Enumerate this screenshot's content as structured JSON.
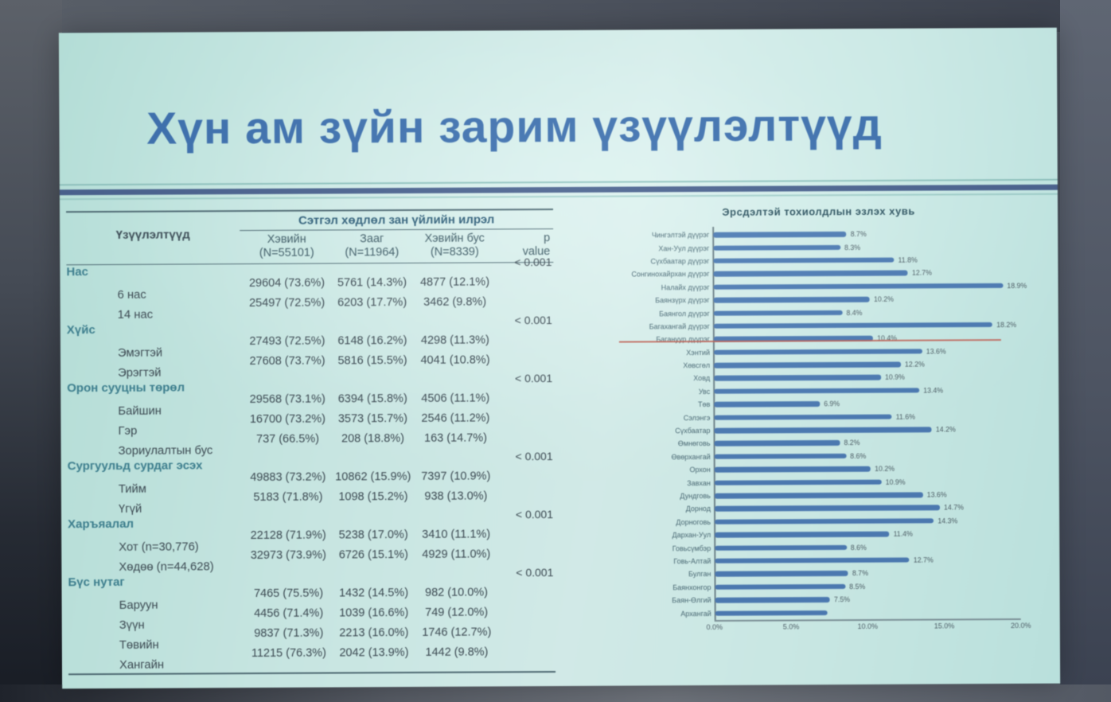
{
  "slide": {
    "title": "Хүн ам зүйн зарим үзүүлэлтүүд"
  },
  "colors": {
    "slide_bg": "#cdebe7",
    "title": "#3b6fae",
    "divider": "#48618e",
    "divider_light": "#8fc3bf",
    "rule": "#4e6a74",
    "text": "#3e4c55",
    "group_text": "#3f8292",
    "bar": "#4d7cb5",
    "highlight": "#c06156",
    "axis_text": "#4f6068"
  },
  "chart_data": [
    {
      "type": "bar",
      "orientation": "horizontal",
      "title": "Эрсдэлтэй тохиолдлын эзлэх хувь",
      "xlabel": "",
      "ylabel": "",
      "xlim": [
        0,
        20
      ],
      "x_ticks": [
        "0.0%",
        "5.0%",
        "10.0%",
        "15.0%",
        "20.0%"
      ],
      "grid": false,
      "legend": "none",
      "highlight_category": "Багануур дүүрэг",
      "items": [
        {
          "label": "Чингэлтэй дүүрэг",
          "value": 8.7,
          "display": "8.7%"
        },
        {
          "label": "Хан-Уул дүүрэг",
          "value": 8.3,
          "display": "8.3%"
        },
        {
          "label": "Сүхбаатар дүүрэг",
          "value": 11.8,
          "display": "11.8%"
        },
        {
          "label": "Сонгинохайрхан дүүрэг",
          "value": 12.7,
          "display": "12.7%"
        },
        {
          "label": "Налайх дүүрэг",
          "value": 18.9,
          "display": "18.9%"
        },
        {
          "label": "Баянзүрх дүүрэг",
          "value": 10.2,
          "display": "10.2%"
        },
        {
          "label": "Баянгол дүүрэг",
          "value": 8.4,
          "display": "8.4%"
        },
        {
          "label": "Багахангай дүүрэг",
          "value": 18.2,
          "display": "18.2%"
        },
        {
          "label": "Багануур дүүрэг",
          "value": 10.4,
          "display": "10.4%",
          "highlight": true
        },
        {
          "label": "Хэнтий",
          "value": 13.6,
          "display": "13.6%"
        },
        {
          "label": "Хөвсгөл",
          "value": 12.2,
          "display": "12.2%"
        },
        {
          "label": "Ховд",
          "value": 10.9,
          "display": "10.9%"
        },
        {
          "label": "Увс",
          "value": 13.4,
          "display": "13.4%"
        },
        {
          "label": "Төв",
          "value": 6.9,
          "display": "6.9%"
        },
        {
          "label": "Сэлэнгэ",
          "value": 11.6,
          "display": "11.6%"
        },
        {
          "label": "Сүхбаатар",
          "value": 14.2,
          "display": "14.2%"
        },
        {
          "label": "Өмнөговь",
          "value": 8.2,
          "display": "8.2%"
        },
        {
          "label": "Өвөрхангай",
          "value": 8.6,
          "display": "8.6%"
        },
        {
          "label": "Орхон",
          "value": 10.2,
          "display": "10.2%"
        },
        {
          "label": "Завхан",
          "value": 10.9,
          "display": "10.9%"
        },
        {
          "label": "Дундговь",
          "value": 13.6,
          "display": "13.6%"
        },
        {
          "label": "Дорнод",
          "value": 14.7,
          "display": "14.7%"
        },
        {
          "label": "Дорноговь",
          "value": 14.3,
          "display": "14.3%"
        },
        {
          "label": "Дархан-Уул",
          "value": 11.4,
          "display": "11.4%"
        },
        {
          "label": "Говьсүмбэр",
          "value": 8.6,
          "display": "8.6%"
        },
        {
          "label": "Говь-Алтай",
          "value": 12.7,
          "display": "12.7%"
        },
        {
          "label": "Булган",
          "value": 8.7,
          "display": "8.7%"
        },
        {
          "label": "Баянхонгор",
          "value": 8.5,
          "display": "8.5%"
        },
        {
          "label": "Баян-Өлгий",
          "value": 7.5,
          "display": "7.5%"
        },
        {
          "label": "Архангай",
          "value": 7.3,
          "display": ""
        }
      ]
    },
    {
      "type": "table",
      "span_header": "Сэтгэл хөдлөл зан үйлийн илрэл",
      "col1_header": "Үзүүлэлтүүд",
      "columns": [
        {
          "line1": "Хэвийн",
          "line2": "(N=55101)"
        },
        {
          "line1": "Зааг",
          "line2": "(N=11964)"
        },
        {
          "line1": "Хэвийн бус",
          "line2": "(N=8339)"
        },
        {
          "line1": "p",
          "line2": "value"
        }
      ],
      "rows": [
        {
          "type": "group",
          "label": "Нас",
          "p": "< 0.001"
        },
        {
          "type": "data",
          "label": "6 нас",
          "normal": "29604 (73.6%)",
          "border": "5761 (14.3%)",
          "abnormal": "4877 (12.1%)"
        },
        {
          "type": "data",
          "label": "14 нас",
          "normal": "25497 (72.5%)",
          "border": "6203 (17.7%)",
          "abnormal": "3462 (9.8%)"
        },
        {
          "type": "group",
          "label": "Хүйс",
          "p": "< 0.001"
        },
        {
          "type": "data",
          "label": "Эмэгтэй",
          "normal": "27493 (72.5%)",
          "border": "6148 (16.2%)",
          "abnormal": "4298 (11.3%)"
        },
        {
          "type": "data",
          "label": "Эрэгтэй",
          "normal": "27608 (73.7%)",
          "border": "5816 (15.5%)",
          "abnormal": "4041 (10.8%)"
        },
        {
          "type": "group",
          "label": "Орон сууцны төрөл",
          "p": "< 0.001"
        },
        {
          "type": "data",
          "label": "Байшин",
          "normal": "29568 (73.1%)",
          "border": "6394 (15.8%)",
          "abnormal": "4506 (11.1%)"
        },
        {
          "type": "data",
          "label": "Гэр",
          "normal": "16700 (73.2%)",
          "border": "3573 (15.7%)",
          "abnormal": "2546 (11.2%)"
        },
        {
          "type": "data",
          "label": "Зориулалтын бус",
          "normal": "737 (66.5%)",
          "border": "208 (18.8%)",
          "abnormal": "163 (14.7%)"
        },
        {
          "type": "group",
          "label": "Сургуульд сурдаг эсэх",
          "p": "< 0.001"
        },
        {
          "type": "data",
          "label": "Тийм",
          "normal": "49883 (73.2%)",
          "border": "10862 (15.9%)",
          "abnormal": "7397 (10.9%)"
        },
        {
          "type": "data",
          "label": "Үгүй",
          "normal": "5183 (71.8%)",
          "border": "1098 (15.2%)",
          "abnormal": "938 (13.0%)"
        },
        {
          "type": "group",
          "label": "Харъяалал",
          "p": "< 0.001"
        },
        {
          "type": "data",
          "label": "Хот (n=30,776)",
          "normal": "22128 (71.9%)",
          "border": "5238 (17.0%)",
          "abnormal": "3410 (11.1%)"
        },
        {
          "type": "data",
          "label": "Хөдөө (n=44,628)",
          "normal": "32973 (73.9%)",
          "border": "6726 (15.1%)",
          "abnormal": "4929 (11.0%)"
        },
        {
          "type": "group",
          "label": "Бүс нутаг",
          "p": "< 0.001"
        },
        {
          "type": "data",
          "label": "Баруун",
          "normal": "7465 (75.5%)",
          "border": "1432 (14.5%)",
          "abnormal": "982 (10.0%)"
        },
        {
          "type": "data",
          "label": "Зүүн",
          "normal": "4456 (71.4%)",
          "border": "1039 (16.6%)",
          "abnormal": "749 (12.0%)"
        },
        {
          "type": "data",
          "label": "Төвийн",
          "normal": "9837 (71.3%)",
          "border": "2213 (16.0%)",
          "abnormal": "1746 (12.7%)"
        },
        {
          "type": "data",
          "label": "Хангайн",
          "normal": "11215 (76.3%)",
          "border": "2042 (13.9%)",
          "abnormal": "1442 (9.8%)"
        }
      ]
    }
  ]
}
